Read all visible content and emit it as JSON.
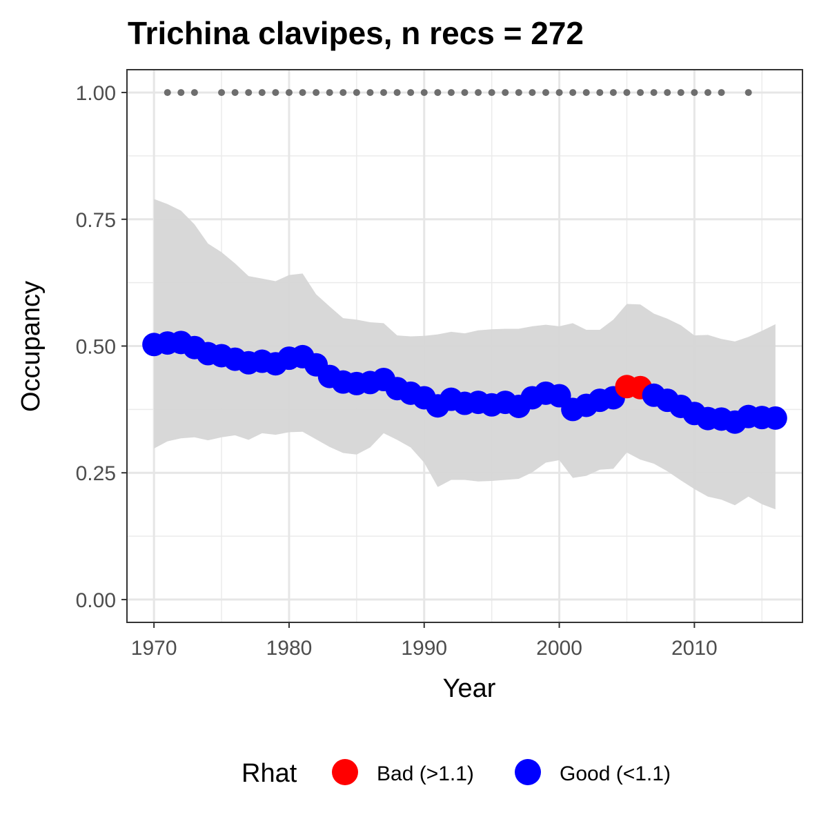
{
  "chart_data": {
    "type": "line",
    "title": "Trichina clavipes, n recs = 272",
    "xlabel": "Year",
    "ylabel": "Occupancy",
    "xlim": [
      1968,
      2018
    ],
    "ylim": [
      -0.045,
      1.045
    ],
    "x_ticks": [
      1970,
      1980,
      1990,
      2000,
      2010
    ],
    "x_tick_labels": [
      "1970",
      "1980",
      "1990",
      "2000",
      "2010"
    ],
    "y_ticks": [
      0,
      0.25,
      0.5,
      0.75,
      1.0
    ],
    "y_tick_labels": [
      "0.00",
      "0.25",
      "0.50",
      "0.75",
      "1.00"
    ],
    "grid": true,
    "legend": {
      "title": "Rhat",
      "position": "bottom",
      "entries": [
        {
          "label": "Bad (>1.1)",
          "color": "#ff0000"
        },
        {
          "label": "Good (<1.1)",
          "color": "#0000ff"
        }
      ]
    },
    "colors": {
      "bad": "#ff0000",
      "good": "#0000ff",
      "ribbon": "#d6d6d6",
      "record_points": "#6e6e6e"
    },
    "years": [
      1970,
      1971,
      1972,
      1973,
      1974,
      1975,
      1976,
      1977,
      1978,
      1979,
      1980,
      1981,
      1982,
      1983,
      1984,
      1985,
      1986,
      1987,
      1988,
      1989,
      1990,
      1991,
      1992,
      1993,
      1994,
      1995,
      1996,
      1997,
      1998,
      1999,
      2000,
      2001,
      2002,
      2003,
      2004,
      2005,
      2006,
      2007,
      2008,
      2009,
      2010,
      2011,
      2012,
      2013,
      2014,
      2015,
      2016
    ],
    "occupancy": [
      0.503,
      0.506,
      0.507,
      0.497,
      0.485,
      0.481,
      0.474,
      0.467,
      0.47,
      0.465,
      0.476,
      0.479,
      0.463,
      0.44,
      0.429,
      0.426,
      0.428,
      0.434,
      0.416,
      0.407,
      0.398,
      0.382,
      0.395,
      0.387,
      0.389,
      0.384,
      0.389,
      0.381,
      0.398,
      0.407,
      0.402,
      0.375,
      0.383,
      0.393,
      0.398,
      0.42,
      0.418,
      0.403,
      0.393,
      0.381,
      0.367,
      0.357,
      0.356,
      0.35,
      0.361,
      0.359,
      0.358
    ],
    "lower_95": [
      0.298,
      0.312,
      0.318,
      0.32,
      0.314,
      0.32,
      0.324,
      0.315,
      0.328,
      0.325,
      0.33,
      0.331,
      0.316,
      0.301,
      0.289,
      0.286,
      0.3,
      0.328,
      0.315,
      0.3,
      0.27,
      0.222,
      0.236,
      0.236,
      0.233,
      0.234,
      0.236,
      0.238,
      0.251,
      0.27,
      0.275,
      0.24,
      0.244,
      0.256,
      0.258,
      0.29,
      0.276,
      0.268,
      0.253,
      0.235,
      0.218,
      0.203,
      0.197,
      0.186,
      0.203,
      0.188,
      0.178
    ],
    "upper_95": [
      0.79,
      0.78,
      0.767,
      0.74,
      0.702,
      0.685,
      0.663,
      0.638,
      0.633,
      0.628,
      0.64,
      0.643,
      0.602,
      0.578,
      0.555,
      0.552,
      0.547,
      0.545,
      0.521,
      0.519,
      0.52,
      0.523,
      0.528,
      0.525,
      0.531,
      0.533,
      0.534,
      0.534,
      0.539,
      0.542,
      0.539,
      0.545,
      0.532,
      0.532,
      0.552,
      0.583,
      0.582,
      0.564,
      0.554,
      0.541,
      0.521,
      0.522,
      0.514,
      0.509,
      0.518,
      0.53,
      0.543
    ],
    "rhat_status": [
      "good",
      "good",
      "good",
      "good",
      "good",
      "good",
      "good",
      "good",
      "good",
      "good",
      "good",
      "good",
      "good",
      "good",
      "good",
      "good",
      "good",
      "good",
      "good",
      "good",
      "good",
      "good",
      "good",
      "good",
      "good",
      "good",
      "good",
      "good",
      "good",
      "good",
      "good",
      "good",
      "good",
      "good",
      "good",
      "bad",
      "bad",
      "good",
      "good",
      "good",
      "good",
      "good",
      "good",
      "good",
      "good",
      "good",
      "good"
    ],
    "record_years": [
      1971,
      1972,
      1973,
      1975,
      1976,
      1977,
      1978,
      1979,
      1980,
      1981,
      1982,
      1983,
      1984,
      1985,
      1986,
      1987,
      1988,
      1989,
      1990,
      1991,
      1992,
      1993,
      1994,
      1995,
      1996,
      1997,
      1998,
      1999,
      2000,
      2001,
      2002,
      2003,
      2004,
      2005,
      2006,
      2007,
      2008,
      2009,
      2010,
      2011,
      2012,
      2014
    ],
    "record_y": 1.0
  }
}
